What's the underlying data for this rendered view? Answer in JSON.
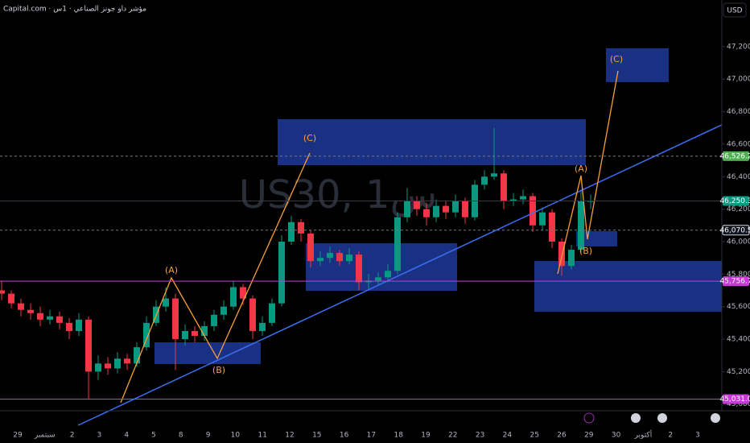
{
  "chart_data": {
    "type": "candlestick",
    "title": "Capital.com · مؤشر داو جونز الصناعي · 1س",
    "watermark": "US30, 1س",
    "currency": "USD",
    "ylim": [
      44959,
      47487
    ],
    "yticks": [
      {
        "value": 45000,
        "label": "45,000.0"
      },
      {
        "value": 45200,
        "label": "45,200.0"
      },
      {
        "value": 45400,
        "label": "45,400.0"
      },
      {
        "value": 45600,
        "label": "45,600.0"
      },
      {
        "value": 45800,
        "label": "45,800.0"
      },
      {
        "value": 46000,
        "label": "46,000.0"
      },
      {
        "value": 46200,
        "label": "46,200.0"
      },
      {
        "value": 46400,
        "label": "46,400.0"
      },
      {
        "value": 46600,
        "label": "46,600.0"
      },
      {
        "value": 46800,
        "label": "46,800.0"
      },
      {
        "value": 47000,
        "label": "47,000.0"
      },
      {
        "value": 47200,
        "label": "47,200.0"
      }
    ],
    "categories": [
      "29",
      "سبتمبر",
      "2",
      "3",
      "4",
      "5",
      "8",
      "9",
      "10",
      "11",
      "12",
      "15",
      "16",
      "17",
      "18",
      "19",
      "22",
      "23",
      "24",
      "25",
      "26",
      "29",
      "30",
      "أكتوبر",
      "2",
      "3"
    ],
    "up_color": "#089981",
    "down_color": "#f23645",
    "ohlc": [
      [
        45700,
        45760,
        45640,
        45680
      ],
      [
        45680,
        45700,
        45590,
        45620
      ],
      [
        45620,
        45650,
        45540,
        45580
      ],
      [
        45580,
        45620,
        45520,
        45560
      ],
      [
        45560,
        45600,
        45480,
        45520
      ],
      [
        45520,
        45580,
        45490,
        45540
      ],
      [
        45540,
        45570,
        45460,
        45500
      ],
      [
        45500,
        45530,
        45400,
        45450
      ],
      [
        45450,
        45560,
        45420,
        45520
      ],
      [
        45520,
        45540,
        45030,
        45200
      ],
      [
        45200,
        45300,
        45150,
        45250
      ],
      [
        45250,
        45290,
        45180,
        45220
      ],
      [
        45220,
        45320,
        45190,
        45280
      ],
      [
        45280,
        45310,
        45210,
        45250
      ],
      [
        45250,
        45380,
        45230,
        45350
      ],
      [
        45350,
        45540,
        45330,
        45500
      ],
      [
        45500,
        45640,
        45480,
        45600
      ],
      [
        45600,
        45720,
        45570,
        45650
      ],
      [
        45650,
        45680,
        45210,
        45400
      ],
      [
        45400,
        45490,
        45360,
        45450
      ],
      [
        45450,
        45480,
        45380,
        45420
      ],
      [
        45420,
        45510,
        45390,
        45480
      ],
      [
        45480,
        45580,
        45450,
        45550
      ],
      [
        45550,
        45640,
        45520,
        45600
      ],
      [
        45600,
        45760,
        45580,
        45720
      ],
      [
        45720,
        45740,
        45610,
        45650
      ],
      [
        45650,
        45670,
        45400,
        45450
      ],
      [
        45450,
        45540,
        45420,
        45500
      ],
      [
        45500,
        45650,
        45480,
        45620
      ],
      [
        45620,
        46040,
        45600,
        46000
      ],
      [
        46000,
        46160,
        45980,
        46120
      ],
      [
        46120,
        46140,
        46000,
        46050
      ],
      [
        46050,
        46070,
        45840,
        45880
      ],
      [
        45880,
        45940,
        45850,
        45900
      ],
      [
        45900,
        45970,
        45870,
        45930
      ],
      [
        45930,
        45950,
        45850,
        45880
      ],
      [
        45880,
        45960,
        45860,
        45920
      ],
      [
        45920,
        45940,
        45700,
        45750
      ],
      [
        45750,
        45800,
        45710,
        45760
      ],
      [
        45760,
        45810,
        45730,
        45780
      ],
      [
        45780,
        45860,
        45750,
        45820
      ],
      [
        45820,
        46180,
        45800,
        46150
      ],
      [
        46150,
        46330,
        46120,
        46250
      ],
      [
        46250,
        46280,
        46160,
        46200
      ],
      [
        46200,
        46240,
        46100,
        46150
      ],
      [
        46150,
        46260,
        46120,
        46220
      ],
      [
        46220,
        46250,
        46140,
        46180
      ],
      [
        46180,
        46290,
        46150,
        46250
      ],
      [
        46250,
        46270,
        46110,
        46150
      ],
      [
        46150,
        46380,
        46130,
        46350
      ],
      [
        46350,
        46440,
        46320,
        46400
      ],
      [
        46400,
        46700,
        46380,
        46420
      ],
      [
        46420,
        46440,
        46200,
        46250
      ],
      [
        46250,
        46300,
        46220,
        46260
      ],
      [
        46260,
        46320,
        46230,
        46280
      ],
      [
        46280,
        46300,
        46060,
        46100
      ],
      [
        46100,
        46210,
        46070,
        46180
      ],
      [
        46180,
        46200,
        45960,
        46000
      ],
      [
        46000,
        46020,
        45790,
        45850
      ],
      [
        45850,
        45980,
        45830,
        45950
      ],
      [
        45950,
        46320,
        45930,
        46250
      ],
      [
        46250,
        46290,
        46200,
        46250
      ]
    ],
    "levels": [
      {
        "value": 46526.2,
        "label": "46,526.2",
        "color": "#4caf50",
        "style": "dashed"
      },
      {
        "value": 46250.3,
        "label": "46,250.3",
        "color": "#089981",
        "style": "solid"
      },
      {
        "value": 46070.5,
        "label": "46,070.5",
        "color": "#131722",
        "style": "dashed"
      },
      {
        "value": 45756.7,
        "label": "45,756.7",
        "color": "#c83ad8",
        "style": "solid"
      },
      {
        "value": 45031.0,
        "label": "45,031.0",
        "color": "#c83ad8",
        "style": "solid"
      }
    ],
    "annotations": [
      "(A)",
      "(B)",
      "(C)",
      "(A)",
      "(B)",
      "(C)"
    ]
  }
}
